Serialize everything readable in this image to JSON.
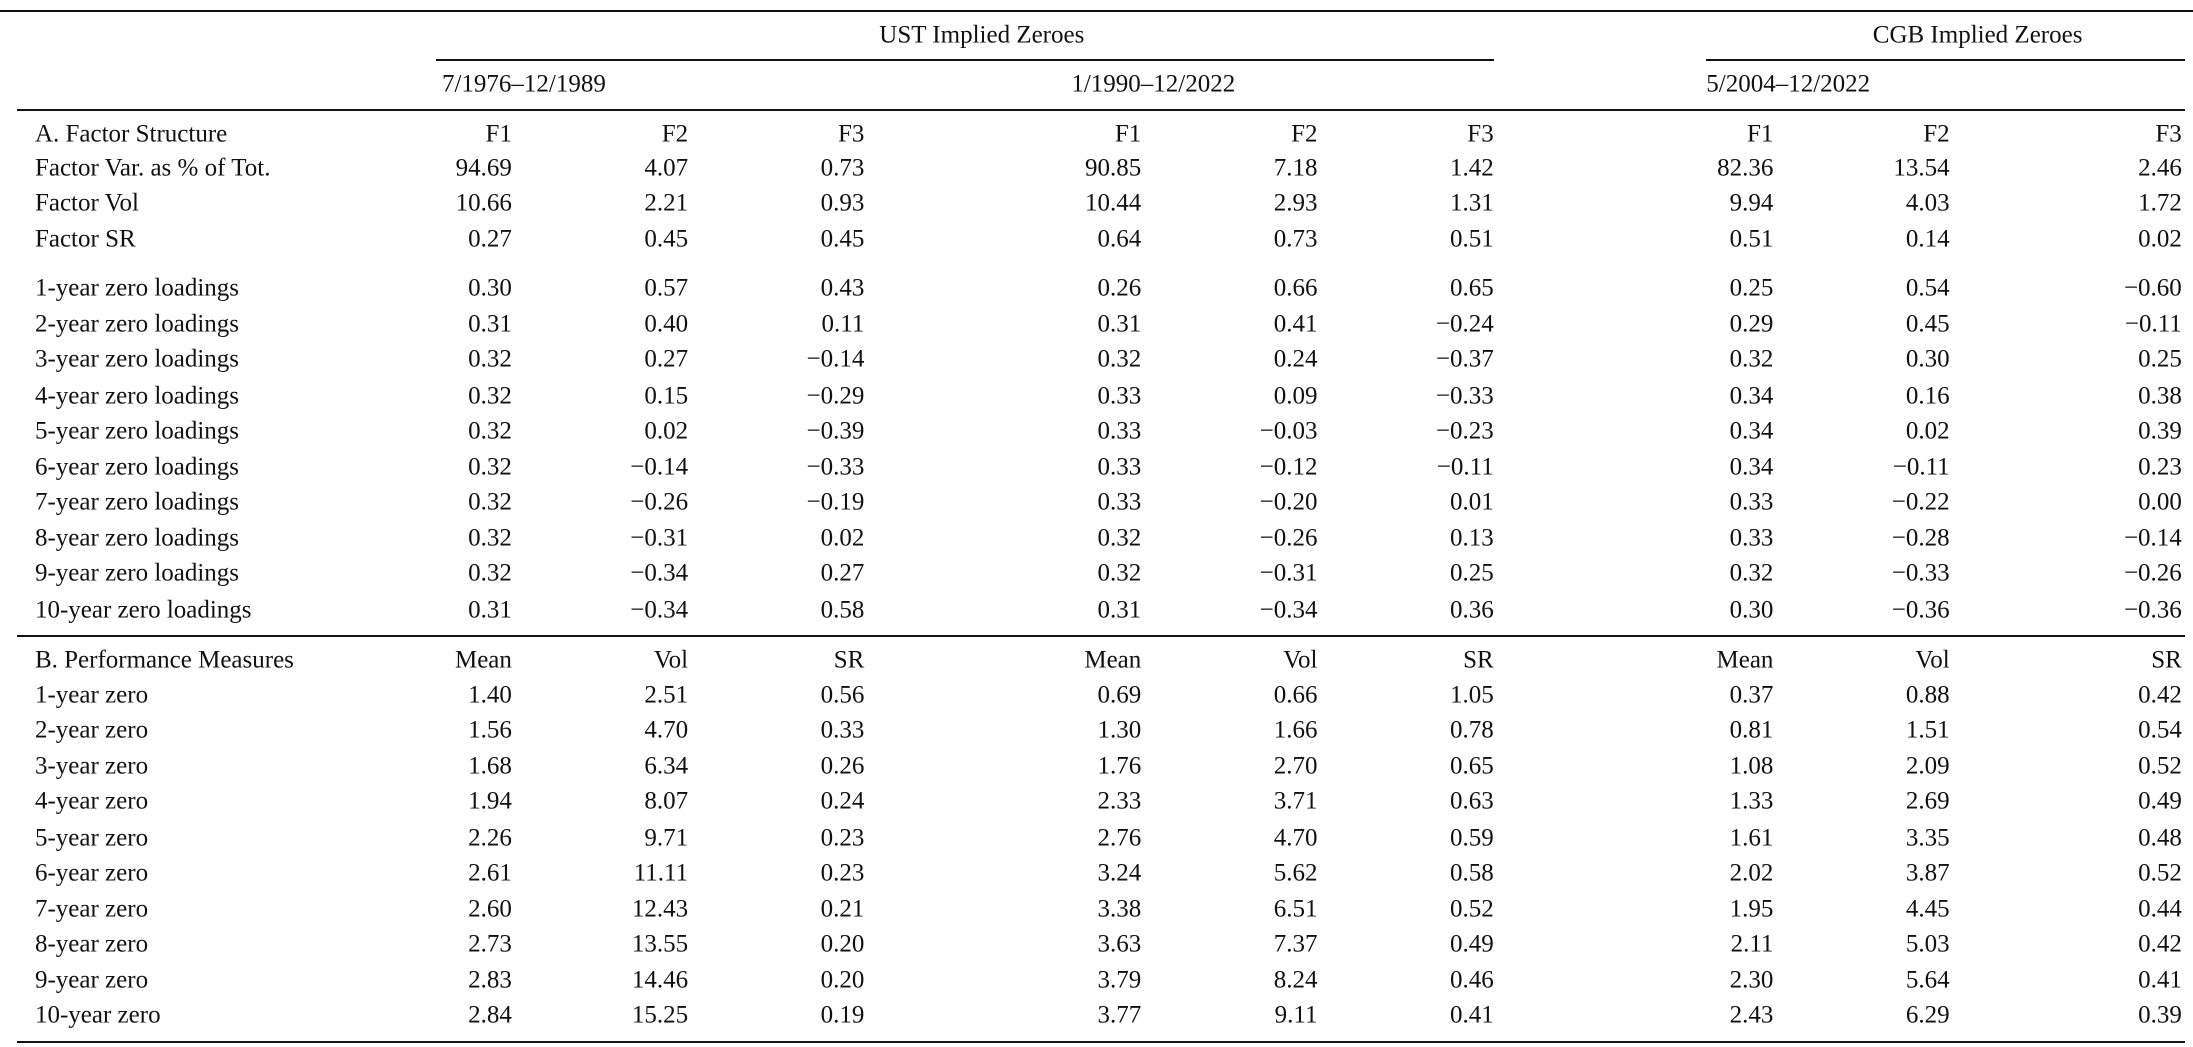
{
  "header": {
    "groups": [
      {
        "title": "UST Implied Zeroes",
        "periods": [
          "7/1976–12/1989",
          "1/1990–12/2022"
        ]
      },
      {
        "title": "CGB Implied Zeroes",
        "periods": [
          "5/2004–12/2022"
        ]
      }
    ]
  },
  "panels": [
    {
      "title": "A. Factor Structure",
      "columns": [
        "F1",
        "F2",
        "F3",
        "F1",
        "F2",
        "F3",
        "F1",
        "F2",
        "F3"
      ],
      "rows": [
        {
          "label": "Factor Var. as % of Tot.",
          "values": [
            "94.69",
            "4.07",
            "0.73",
            "90.85",
            "7.18",
            "1.42",
            "82.36",
            "13.54",
            "2.46"
          ]
        },
        {
          "label": "Factor Vol",
          "values": [
            "10.66",
            "2.21",
            "0.93",
            "10.44",
            "2.93",
            "1.31",
            "9.94",
            "4.03",
            "1.72"
          ]
        },
        {
          "label": "Factor SR",
          "values": [
            "0.27",
            "0.45",
            "0.45",
            "0.64",
            "0.73",
            "0.51",
            "0.51",
            "0.14",
            "0.02"
          ]
        },
        {
          "label": "1-year zero loadings",
          "values": [
            "0.30",
            "0.57",
            "0.43",
            "0.26",
            "0.66",
            "0.65",
            "0.25",
            "0.54",
            "−0.60"
          ]
        },
        {
          "label": "2-year zero loadings",
          "values": [
            "0.31",
            "0.40",
            "0.11",
            "0.31",
            "0.41",
            "−0.24",
            "0.29",
            "0.45",
            "−0.11"
          ]
        },
        {
          "label": "3-year zero loadings",
          "values": [
            "0.32",
            "0.27",
            "−0.14",
            "0.32",
            "0.24",
            "−0.37",
            "0.32",
            "0.30",
            "0.25"
          ]
        },
        {
          "label": "4-year zero loadings",
          "values": [
            "0.32",
            "0.15",
            "−0.29",
            "0.33",
            "0.09",
            "−0.33",
            "0.34",
            "0.16",
            "0.38"
          ]
        },
        {
          "label": "5-year zero loadings",
          "values": [
            "0.32",
            "0.02",
            "−0.39",
            "0.33",
            "−0.03",
            "−0.23",
            "0.34",
            "0.02",
            "0.39"
          ]
        },
        {
          "label": "6-year zero loadings",
          "values": [
            "0.32",
            "−0.14",
            "−0.33",
            "0.33",
            "−0.12",
            "−0.11",
            "0.34",
            "−0.11",
            "0.23"
          ]
        },
        {
          "label": "7-year zero loadings",
          "values": [
            "0.32",
            "−0.26",
            "−0.19",
            "0.33",
            "−0.20",
            "0.01",
            "0.33",
            "−0.22",
            "0.00"
          ]
        },
        {
          "label": "8-year zero loadings",
          "values": [
            "0.32",
            "−0.31",
            "0.02",
            "0.32",
            "−0.26",
            "0.13",
            "0.33",
            "−0.28",
            "−0.14"
          ]
        },
        {
          "label": "9-year zero loadings",
          "values": [
            "0.32",
            "−0.34",
            "0.27",
            "0.32",
            "−0.31",
            "0.25",
            "0.32",
            "−0.33",
            "−0.26"
          ]
        },
        {
          "label": "10-year zero loadings",
          "values": [
            "0.31",
            "−0.34",
            "0.58",
            "0.31",
            "−0.34",
            "0.36",
            "0.30",
            "−0.36",
            "−0.36"
          ]
        }
      ]
    },
    {
      "title": "B. Performance Measures",
      "columns": [
        "Mean",
        "Vol",
        "SR",
        "Mean",
        "Vol",
        "SR",
        "Mean",
        "Vol",
        "SR"
      ],
      "rows": [
        {
          "label": "1-year zero",
          "values": [
            "1.40",
            "2.51",
            "0.56",
            "0.69",
            "0.66",
            "1.05",
            "0.37",
            "0.88",
            "0.42"
          ]
        },
        {
          "label": "2-year zero",
          "values": [
            "1.56",
            "4.70",
            "0.33",
            "1.30",
            "1.66",
            "0.78",
            "0.81",
            "1.51",
            "0.54"
          ]
        },
        {
          "label": "3-year zero",
          "values": [
            "1.68",
            "6.34",
            "0.26",
            "1.76",
            "2.70",
            "0.65",
            "1.08",
            "2.09",
            "0.52"
          ]
        },
        {
          "label": "4-year zero",
          "values": [
            "1.94",
            "8.07",
            "0.24",
            "2.33",
            "3.71",
            "0.63",
            "1.33",
            "2.69",
            "0.49"
          ]
        },
        {
          "label": "5-year zero",
          "values": [
            "2.26",
            "9.71",
            "0.23",
            "2.76",
            "4.70",
            "0.59",
            "1.61",
            "3.35",
            "0.48"
          ]
        },
        {
          "label": "6-year zero",
          "values": [
            "2.61",
            "11.11",
            "0.23",
            "3.24",
            "5.62",
            "0.58",
            "2.02",
            "3.87",
            "0.52"
          ]
        },
        {
          "label": "7-year zero",
          "values": [
            "2.60",
            "12.43",
            "0.21",
            "3.38",
            "6.51",
            "0.52",
            "1.95",
            "4.45",
            "0.44"
          ]
        },
        {
          "label": "8-year zero",
          "values": [
            "2.73",
            "13.55",
            "0.20",
            "3.63",
            "7.37",
            "0.49",
            "2.11",
            "5.03",
            "0.42"
          ]
        },
        {
          "label": "9-year zero",
          "values": [
            "2.83",
            "14.46",
            "0.20",
            "3.79",
            "8.24",
            "0.46",
            "2.30",
            "5.64",
            "0.41"
          ]
        },
        {
          "label": "10-year zero",
          "values": [
            "2.84",
            "15.25",
            "0.19",
            "3.77",
            "9.11",
            "0.41",
            "2.43",
            "6.29",
            "0.39"
          ]
        }
      ]
    }
  ]
}
